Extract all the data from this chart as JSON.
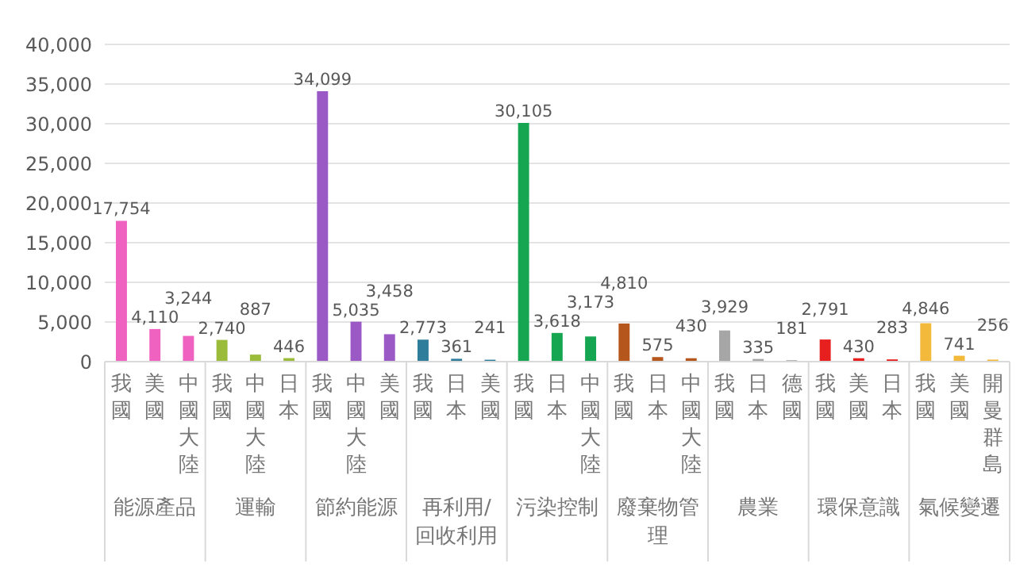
{
  "chart_data": {
    "type": "bar",
    "categories": [
      "我國",
      "美國",
      "中國大陸",
      "我國",
      "中國大陸",
      "日本",
      "我國",
      "中國大陸",
      "美國",
      "我國",
      "日本",
      "美國",
      "我國",
      "日本",
      "中國大陸",
      "我國",
      "日本",
      "中國大陸",
      "我國",
      "日本",
      "德國",
      "我國",
      "美國",
      "日本",
      "我國",
      "美國",
      "開曼群島"
    ],
    "values": [
      17754,
      4110,
      3244,
      2740,
      887,
      446,
      34099,
      5035,
      3458,
      2773,
      361,
      241,
      30105,
      3618,
      3173,
      4810,
      575,
      430,
      3929,
      335,
      181,
      2791,
      430,
      283,
      4846,
      741,
      256
    ],
    "colors": [
      "#f062c0",
      "#f062c0",
      "#f062c0",
      "#9bbb3b",
      "#9bbb3b",
      "#9bbb3b",
      "#9b59c6",
      "#9b59c6",
      "#9b59c6",
      "#2e7d9a",
      "#2e7d9a",
      "#2e7d9a",
      "#16a550",
      "#16a550",
      "#16a550",
      "#b5561d",
      "#b5561d",
      "#b5561d",
      "#a6a6a6",
      "#a6a6a6",
      "#a6a6a6",
      "#e81f1f",
      "#e81f1f",
      "#e81f1f",
      "#f2b93b",
      "#f2b93b",
      "#f2b93b"
    ],
    "annotations": [
      "能源產品",
      "運輸",
      "節約能源",
      "再利用/回收利用",
      "污染控制",
      "廢棄物管理",
      "農業",
      "環保意識",
      "氣候變遷"
    ],
    "value_labels": [
      "17,754",
      "4,110",
      "3,244",
      "2,740",
      "887",
      "446",
      "34,099",
      "5,035",
      "3,458",
      "2,773",
      "361",
      "241",
      "30,105",
      "3,618",
      "3,173",
      "4,810",
      "575",
      "430",
      "3,929",
      "335",
      "181",
      "2,791",
      "430",
      "283",
      "4,846",
      "741",
      "256"
    ],
    "ylim": [
      0,
      40000
    ],
    "yticks": [
      0,
      {
        "value": 5000,
        "label": "5,000"
      },
      {
        "value": 10000,
        "label": "10,000"
      },
      {
        "value": 15000,
        "label": "15,000"
      },
      {
        "value": 20000,
        "label": "20,000"
      },
      {
        "value": 25000,
        "label": "25,000"
      },
      {
        "value": 30000,
        "label": "30,000"
      },
      {
        "value": 35000,
        "label": "35,000"
      },
      {
        "value": 40000,
        "label": "40,000"
      }
    ],
    "grid": "y"
  }
}
